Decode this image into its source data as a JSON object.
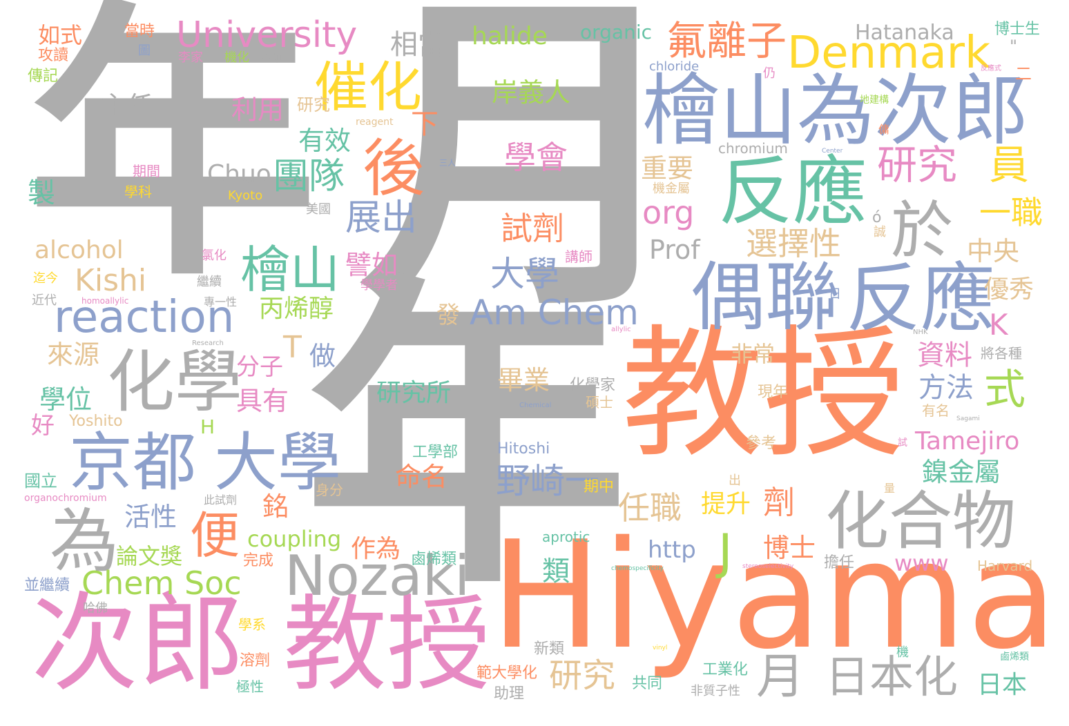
{
  "title": "Hiyama word cloud",
  "palette": {
    "gray": "#ADADAD",
    "orange": "#FC8D62",
    "blue": "#8DA0CB",
    "pink": "#E78AC3",
    "green": "#66C2A5",
    "lime": "#A6D854",
    "yellow": "#FFD92F",
    "tan": "#E5C494"
  },
  "words": [
    {
      "text": "年",
      "color": "gray"
    },
    {
      "text": "月",
      "color": "gray"
    },
    {
      "text": "年",
      "color": "gray"
    },
    {
      "text": "教授",
      "color": "orange"
    },
    {
      "text": "Hiyama",
      "color": "orange"
    },
    {
      "text": "次郎",
      "color": "pink"
    },
    {
      "text": "教授",
      "color": "pink"
    },
    {
      "text": "檜山為次郎",
      "color": "blue"
    },
    {
      "text": "反應",
      "color": "green"
    },
    {
      "text": "反應",
      "color": "blue"
    },
    {
      "text": "偶聯",
      "color": "blue"
    },
    {
      "text": "化合物",
      "color": "gray"
    },
    {
      "text": "化學",
      "color": "gray"
    },
    {
      "text": "京都",
      "color": "blue"
    },
    {
      "text": "大學",
      "color": "blue"
    },
    {
      "text": "Nozaki",
      "color": "gray"
    },
    {
      "text": "為",
      "color": "gray"
    },
    {
      "text": "後",
      "color": "orange"
    },
    {
      "text": "催化",
      "color": "yellow"
    },
    {
      "text": "檜山",
      "color": "green"
    },
    {
      "text": "University",
      "color": "pink"
    },
    {
      "text": "Denmark",
      "color": "yellow"
    },
    {
      "text": "reaction",
      "color": "blue"
    },
    {
      "text": "氟離子",
      "color": "orange"
    },
    {
      "text": "研究",
      "color": "pink"
    },
    {
      "text": "員",
      "color": "yellow"
    },
    {
      "text": "於",
      "color": "gray"
    },
    {
      "text": "日本化",
      "color": "gray"
    },
    {
      "text": "月",
      "color": "gray"
    },
    {
      "text": "Am Chem",
      "color": "blue"
    },
    {
      "text": "Chem Soc",
      "color": "lime"
    },
    {
      "text": "便",
      "color": "orange"
    },
    {
      "text": "團隊",
      "color": "green"
    },
    {
      "text": "展出",
      "color": "blue"
    },
    {
      "text": "大學",
      "color": "blue"
    },
    {
      "text": "野崎一",
      "color": "blue"
    },
    {
      "text": "學會",
      "color": "pink"
    },
    {
      "text": "試劑",
      "color": "orange"
    },
    {
      "text": "選擇性",
      "color": "tan"
    },
    {
      "text": "org",
      "color": "pink"
    },
    {
      "text": "一職",
      "color": "yellow"
    },
    {
      "text": "Kishi",
      "color": "tan"
    },
    {
      "text": "任職",
      "color": "tan"
    },
    {
      "text": "式",
      "color": "lime"
    },
    {
      "text": "研究",
      "color": "tan"
    },
    {
      "text": "相當",
      "color": "gray"
    },
    {
      "text": "halide",
      "color": "lime"
    },
    {
      "text": "organic",
      "color": "green"
    },
    {
      "text": "Hatanaka",
      "color": "gray"
    },
    {
      "text": "博士生",
      "color": "green"
    },
    {
      "text": "如式",
      "color": "orange"
    },
    {
      "text": "當時",
      "color": "orange"
    },
    {
      "text": "主任",
      "color": "gray"
    },
    {
      "text": "利用",
      "color": "pink"
    },
    {
      "text": "岸義人",
      "color": "lime"
    },
    {
      "text": "有效",
      "color": "green"
    },
    {
      "text": "重要",
      "color": "tan"
    },
    {
      "text": "Chuo",
      "color": "gray"
    },
    {
      "text": "製",
      "color": "green"
    },
    {
      "text": "alcohol",
      "color": "tan"
    },
    {
      "text": "Prof",
      "color": "gray"
    },
    {
      "text": "中央",
      "color": "tan"
    },
    {
      "text": "譬如",
      "color": "pink"
    },
    {
      "text": "丙烯醇",
      "color": "lime"
    },
    {
      "text": "優秀",
      "color": "tan"
    },
    {
      "text": "K",
      "color": "pink"
    },
    {
      "text": "來源",
      "color": "tan"
    },
    {
      "text": "T",
      "color": "tan"
    },
    {
      "text": "做",
      "color": "blue"
    },
    {
      "text": "資料",
      "color": "pink"
    },
    {
      "text": "方法",
      "color": "blue"
    },
    {
      "text": "非常",
      "color": "tan"
    },
    {
      "text": "學位",
      "color": "green"
    },
    {
      "text": "分子",
      "color": "pink"
    },
    {
      "text": "具有",
      "color": "pink"
    },
    {
      "text": "研究所",
      "color": "green"
    },
    {
      "text": "畢業",
      "color": "tan"
    },
    {
      "text": "Tamejiro",
      "color": "pink"
    },
    {
      "text": "鎳金屬",
      "color": "green"
    },
    {
      "text": "命名",
      "color": "orange"
    },
    {
      "text": "H",
      "color": "lime"
    },
    {
      "text": "活性",
      "color": "blue"
    },
    {
      "text": "銘",
      "color": "orange"
    },
    {
      "text": "提升",
      "color": "yellow"
    },
    {
      "text": "劑",
      "color": "orange"
    },
    {
      "text": "coupling",
      "color": "lime"
    },
    {
      "text": "作為",
      "color": "orange"
    },
    {
      "text": "論文獎",
      "color": "lime"
    },
    {
      "text": "http",
      "color": "blue"
    },
    {
      "text": "博士",
      "color": "orange"
    },
    {
      "text": "類",
      "color": "green"
    },
    {
      "text": "J",
      "color": "lime"
    },
    {
      "text": "www",
      "color": "pink"
    },
    {
      "text": "研究",
      "color": "tan"
    },
    {
      "text": "日本",
      "color": "green"
    },
    {
      "text": "好",
      "color": "pink"
    },
    {
      "text": "Yoshito",
      "color": "tan"
    },
    {
      "text": "Hitoshi",
      "color": "blue"
    },
    {
      "text": "下",
      "color": "orange"
    },
    {
      "text": "發",
      "color": "tan"
    },
    {
      "text": "chloride",
      "color": "blue"
    },
    {
      "text": "chromium",
      "color": "gray"
    },
    {
      "text": "國立",
      "color": "green"
    },
    {
      "text": "身分",
      "color": "tan"
    },
    {
      "text": "期中",
      "color": "yellow"
    },
    {
      "text": "工學部",
      "color": "green"
    },
    {
      "text": "鹵烯類",
      "color": "green"
    },
    {
      "text": "完成",
      "color": "orange"
    },
    {
      "text": "並繼續",
      "color": "blue"
    },
    {
      "text": "哈佛",
      "color": "gray"
    },
    {
      "text": "新類",
      "color": "gray"
    },
    {
      "text": "助理",
      "color": "gray"
    },
    {
      "text": "共同",
      "color": "green"
    },
    {
      "text": "工業化",
      "color": "green"
    },
    {
      "text": "非質子性",
      "color": "gray"
    },
    {
      "text": "Harvard",
      "color": "tan"
    },
    {
      "text": "擔任",
      "color": "gray"
    },
    {
      "text": "aprotic",
      "color": "green"
    },
    {
      "text": "學系",
      "color": "yellow"
    },
    {
      "text": "溶劑",
      "color": "orange"
    },
    {
      "text": "極性",
      "color": "green"
    },
    {
      "text": "範大學化",
      "color": "orange"
    },
    {
      "text": "參考",
      "color": "tan"
    },
    {
      "text": "有名",
      "color": "tan"
    },
    {
      "text": "現年",
      "color": "tan"
    },
    {
      "text": "碩士",
      "color": "tan"
    },
    {
      "text": "化學家",
      "color": "gray"
    },
    {
      "text": "將各種",
      "color": "gray"
    },
    {
      "text": "鹵烯類",
      "color": "green"
    },
    {
      "text": "攻讀",
      "color": "orange"
    },
    {
      "text": "傳記",
      "color": "lime"
    },
    {
      "text": "機化",
      "color": "lime"
    },
    {
      "text": "李家",
      "color": "pink"
    },
    {
      "text": "圖",
      "color": "blue"
    },
    {
      "text": "期間",
      "color": "pink"
    },
    {
      "text": "學科",
      "color": "yellow"
    },
    {
      "text": "美國",
      "color": "gray"
    },
    {
      "text": "氯化",
      "color": "pink"
    },
    {
      "text": "繼續",
      "color": "gray"
    },
    {
      "text": "迄今",
      "color": "yellow"
    },
    {
      "text": "近代",
      "color": "gray"
    },
    {
      "text": "專一性",
      "color": "gray"
    },
    {
      "text": "學學者",
      "color": "pink"
    },
    {
      "text": "講師",
      "color": "pink"
    },
    {
      "text": "仍",
      "color": "pink"
    },
    {
      "text": "機金屬",
      "color": "tan"
    },
    {
      "text": "地建構",
      "color": "lime"
    },
    {
      "text": "Kyoto",
      "color": "yellow"
    },
    {
      "text": "reagent",
      "color": "tan"
    },
    {
      "text": "homoallylic",
      "color": "pink"
    },
    {
      "text": "allylic",
      "color": "pink"
    },
    {
      "text": "Research",
      "color": "gray"
    },
    {
      "text": "Chemical",
      "color": "blue"
    },
    {
      "text": "organochromium",
      "color": "pink"
    },
    {
      "text": "此試劑",
      "color": "gray"
    },
    {
      "text": "chemospecificity",
      "color": "green"
    },
    {
      "text": "stereoselectivity",
      "color": "pink"
    },
    {
      "text": "vinyl",
      "color": "yellow"
    },
    {
      "text": "Sagami",
      "color": "gray"
    },
    {
      "text": "Center",
      "color": "blue"
    },
    {
      "text": "NHK",
      "color": "gray"
    },
    {
      "text": "三人",
      "color": "blue"
    },
    {
      "text": "日",
      "color": "blue"
    },
    {
      "text": "反應式",
      "color": "pink"
    },
    {
      "text": "二",
      "color": "orange"
    },
    {
      "text": "各類",
      "color": "gray"
    },
    {
      "text": "出",
      "color": "tan"
    },
    {
      "text": "量",
      "color": "tan"
    },
    {
      "text": "機",
      "color": "green"
    },
    {
      "text": "ó",
      "color": "gray"
    },
    {
      "text": "誠",
      "color": "tan"
    },
    {
      "text": "傭",
      "color": "orange"
    },
    {
      "text": "試",
      "color": "pink"
    },
    {
      "text": "\"",
      "color": "gray"
    }
  ]
}
